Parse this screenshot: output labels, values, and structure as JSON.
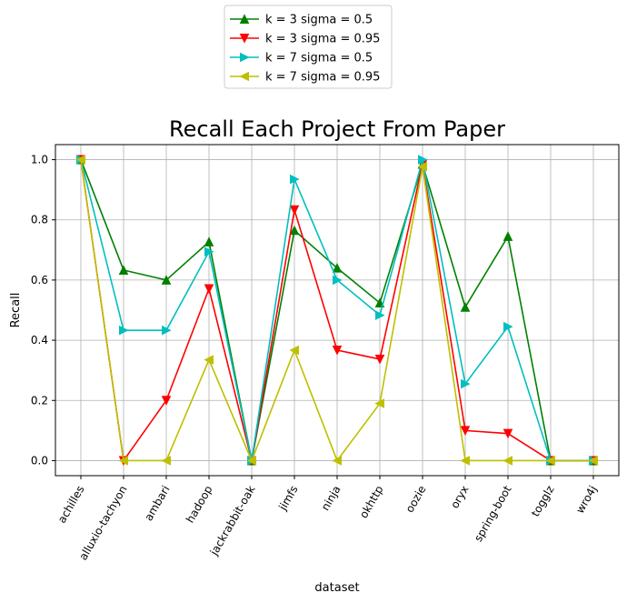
{
  "chart_data": {
    "type": "line",
    "title": "Recall Each Project From Paper",
    "xlabel": "dataset",
    "ylabel": "Recall",
    "categories": [
      "achilles",
      "alluxio-tachyon",
      "ambari",
      "hadoop",
      "jackrabbit-oak",
      "jimfs",
      "ninja",
      "okhttp",
      "oozie",
      "oryx",
      "spring-boot",
      "togglz",
      "wro4j"
    ],
    "ylim": [
      -0.05,
      1.05
    ],
    "yticks": [
      "0.0",
      "0.2",
      "0.4",
      "0.6",
      "0.8",
      "1.0"
    ],
    "grid": true,
    "legend_position": "top-center, above plot",
    "series": [
      {
        "name": "k = 3 sigma = 0.5",
        "color": "#008000",
        "marker": "triangle-up",
        "values": [
          1.0,
          0.633,
          0.6,
          0.727,
          0.0,
          0.765,
          0.64,
          0.524,
          0.985,
          0.51,
          0.745,
          0.0,
          0.0
        ]
      },
      {
        "name": "k = 3 sigma = 0.95",
        "color": "#ff0000",
        "marker": "triangle-down",
        "values": [
          1.0,
          0.0,
          0.2,
          0.571,
          0.0,
          0.833,
          0.367,
          0.337,
          0.985,
          0.1,
          0.09,
          0.0,
          0.0
        ]
      },
      {
        "name": "k = 7 sigma = 0.5",
        "color": "#00bfbf",
        "marker": "triangle-right",
        "values": [
          1.0,
          0.433,
          0.433,
          0.694,
          0.0,
          0.935,
          0.6,
          0.483,
          1.0,
          0.255,
          0.445,
          0.0,
          0.0
        ]
      },
      {
        "name": "k = 7 sigma = 0.95",
        "color": "#bfbf00",
        "marker": "triangle-left",
        "values": [
          1.0,
          0.0,
          0.0,
          0.335,
          0.0,
          0.367,
          0.0,
          0.19,
          0.977,
          0.0,
          0.0,
          0.0,
          0.0
        ]
      }
    ]
  }
}
